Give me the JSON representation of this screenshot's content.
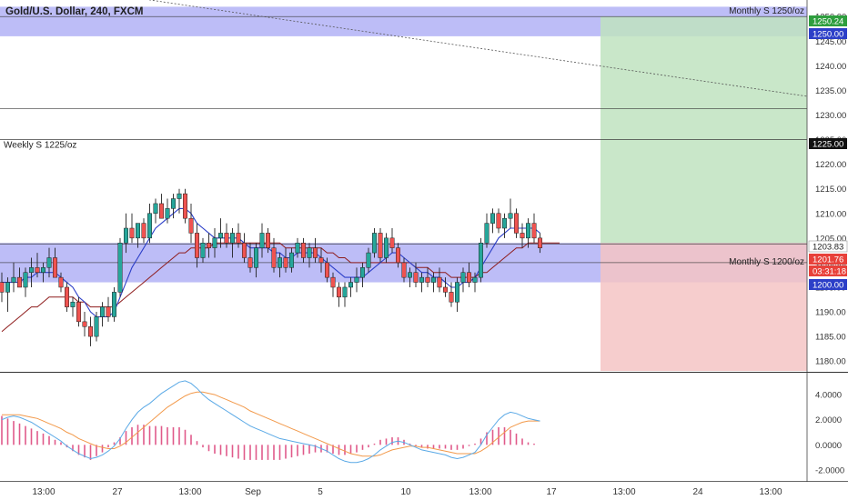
{
  "title": "Gold/U.S. Dollar, 240, FXCM",
  "colors": {
    "up": "#26a69a",
    "down": "#ef5350",
    "zone": "#7b7bf0",
    "green_zone": "#bfe3c0",
    "red_zone": "#f5c4c4",
    "ma_fast": "#2c3fc8",
    "ma_slow": "#8e1b1b",
    "macd_line": "#5aa9e6",
    "signal_line": "#f2994a",
    "hist": "#e05a8a"
  },
  "levels": [
    {
      "label": "Monthly S 1250/oz",
      "value": 1250.0
    },
    {
      "label": "Weekly S 1225/oz",
      "value": 1225.0
    },
    {
      "label": "Monthly S 1200/oz",
      "value": 1200.0
    }
  ],
  "price_badges": [
    {
      "text": "1250.24",
      "kind": "green"
    },
    {
      "text": "1250.00",
      "kind": "blue"
    },
    {
      "text": "1225.00",
      "kind": "black"
    },
    {
      "text": "1203.83",
      "kind": "plain"
    },
    {
      "text": "1201.76",
      "kind": "red"
    },
    {
      "text": "03:31:18",
      "kind": "red"
    },
    {
      "text": "1200.00",
      "kind": "blue"
    }
  ],
  "chart_data": [
    {
      "type": "candlestick",
      "title": "Gold/U.S. Dollar, 240, FXCM",
      "ylim": [
        1178,
        1253
      ],
      "y_ticks": [
        1180,
        1185,
        1190,
        1195,
        1200,
        1205,
        1210,
        1215,
        1220,
        1225,
        1230,
        1235,
        1240,
        1245,
        1250
      ],
      "y_tick_labels": [
        "1180.00",
        "1185.00",
        "1190.00",
        "1195.00",
        "1200.00",
        "1205.00",
        "1210.00",
        "1215.00",
        "1220.00",
        "1225.00",
        "1230.00",
        "1235.00",
        "1240.00",
        "1245.00",
        "1250.00"
      ],
      "x_tick_labels": [
        "13:00",
        "27",
        "13:00",
        "Sep",
        "5",
        "10",
        "13:00",
        "17",
        "13:00",
        "24",
        "13:00"
      ],
      "horizontal_lines": [
        1250.0,
        1231.3,
        1225.0,
        1203.8,
        1200.0
      ],
      "zones": [
        {
          "name": "Monthly S 1250/oz",
          "from": 1246,
          "to": 1252
        },
        {
          "name": "Monthly S 1200/oz",
          "from": 1196,
          "to": 1204
        }
      ],
      "position": {
        "entry": 1204,
        "target": 1250,
        "stop": 1178
      },
      "candles": [
        [
          1196,
          1198,
          1192,
          1194
        ],
        [
          1194,
          1197,
          1190,
          1196
        ],
        [
          1196,
          1200,
          1194,
          1197
        ],
        [
          1197,
          1199,
          1195,
          1195
        ],
        [
          1195,
          1199,
          1193,
          1198
        ],
        [
          1198,
          1201,
          1195,
          1199
        ],
        [
          1199,
          1202,
          1197,
          1198
        ],
        [
          1198,
          1200,
          1196,
          1199
        ],
        [
          1199,
          1203,
          1197,
          1201
        ],
        [
          1201,
          1203,
          1197,
          1197
        ],
        [
          1197,
          1198,
          1194,
          1195
        ],
        [
          1195,
          1196,
          1190,
          1191
        ],
        [
          1191,
          1193,
          1189,
          1192
        ],
        [
          1192,
          1193,
          1187,
          1188
        ],
        [
          1188,
          1190,
          1185,
          1187
        ],
        [
          1187,
          1189,
          1183,
          1185
        ],
        [
          1185,
          1190,
          1184,
          1189
        ],
        [
          1189,
          1192,
          1187,
          1191
        ],
        [
          1191,
          1193,
          1188,
          1189
        ],
        [
          1189,
          1195,
          1188,
          1194
        ],
        [
          1194,
          1205,
          1193,
          1204
        ],
        [
          1204,
          1210,
          1202,
          1207
        ],
        [
          1207,
          1210,
          1204,
          1205
        ],
        [
          1205,
          1208,
          1203,
          1208
        ],
        [
          1208,
          1209,
          1204,
          1205
        ],
        [
          1205,
          1212,
          1204,
          1210
        ],
        [
          1210,
          1213,
          1208,
          1212
        ],
        [
          1212,
          1214,
          1209,
          1209
        ],
        [
          1209,
          1213,
          1208,
          1211
        ],
        [
          1211,
          1214,
          1209,
          1213
        ],
        [
          1213,
          1215,
          1210,
          1214
        ],
        [
          1214,
          1215,
          1208,
          1209
        ],
        [
          1209,
          1212,
          1204,
          1206
        ],
        [
          1206,
          1208,
          1199,
          1201
        ],
        [
          1201,
          1205,
          1200,
          1204
        ],
        [
          1204,
          1206,
          1201,
          1203
        ],
        [
          1203,
          1207,
          1201,
          1205
        ],
        [
          1205,
          1209,
          1203,
          1206
        ],
        [
          1206,
          1208,
          1203,
          1204
        ],
        [
          1204,
          1207,
          1201,
          1206
        ],
        [
          1206,
          1208,
          1203,
          1204
        ],
        [
          1204,
          1206,
          1200,
          1201
        ],
        [
          1201,
          1204,
          1198,
          1199
        ],
        [
          1199,
          1204,
          1197,
          1203
        ],
        [
          1203,
          1208,
          1201,
          1206
        ],
        [
          1206,
          1207,
          1202,
          1203
        ],
        [
          1203,
          1205,
          1198,
          1199
        ],
        [
          1199,
          1202,
          1197,
          1201
        ],
        [
          1201,
          1203,
          1198,
          1199
        ],
        [
          1199,
          1203,
          1198,
          1202
        ],
        [
          1202,
          1205,
          1201,
          1204
        ],
        [
          1204,
          1205,
          1200,
          1201
        ],
        [
          1201,
          1204,
          1199,
          1203
        ],
        [
          1203,
          1205,
          1200,
          1201
        ],
        [
          1201,
          1203,
          1198,
          1200
        ],
        [
          1200,
          1201,
          1196,
          1197
        ],
        [
          1197,
          1198,
          1193,
          1195
        ],
        [
          1195,
          1196,
          1191,
          1193
        ],
        [
          1193,
          1196,
          1191,
          1195
        ],
        [
          1195,
          1197,
          1193,
          1196
        ],
        [
          1196,
          1199,
          1194,
          1197
        ],
        [
          1197,
          1200,
          1195,
          1199
        ],
        [
          1199,
          1203,
          1198,
          1202
        ],
        [
          1202,
          1207,
          1201,
          1206
        ],
        [
          1206,
          1207,
          1200,
          1201
        ],
        [
          1201,
          1206,
          1200,
          1205
        ],
        [
          1205,
          1207,
          1202,
          1203
        ],
        [
          1203,
          1204,
          1199,
          1200
        ],
        [
          1200,
          1201,
          1196,
          1197
        ],
        [
          1197,
          1199,
          1195,
          1198
        ],
        [
          1198,
          1200,
          1195,
          1196
        ],
        [
          1196,
          1198,
          1194,
          1197
        ],
        [
          1197,
          1199,
          1195,
          1196
        ],
        [
          1196,
          1198,
          1194,
          1197
        ],
        [
          1197,
          1199,
          1194,
          1195
        ],
        [
          1195,
          1197,
          1193,
          1194
        ],
        [
          1194,
          1196,
          1191,
          1192
        ],
        [
          1192,
          1197,
          1190,
          1196
        ],
        [
          1196,
          1199,
          1194,
          1198
        ],
        [
          1198,
          1200,
          1195,
          1196
        ],
        [
          1196,
          1198,
          1194,
          1197
        ],
        [
          1197,
          1205,
          1196,
          1204
        ],
        [
          1204,
          1210,
          1203,
          1208
        ],
        [
          1208,
          1211,
          1206,
          1210
        ],
        [
          1210,
          1211,
          1206,
          1207
        ],
        [
          1207,
          1210,
          1205,
          1209
        ],
        [
          1209,
          1213,
          1207,
          1210
        ],
        [
          1210,
          1211,
          1205,
          1206
        ],
        [
          1206,
          1208,
          1203,
          1205
        ],
        [
          1205,
          1209,
          1203,
          1208
        ],
        [
          1208,
          1210,
          1204,
          1205
        ],
        [
          1205,
          1206,
          1202,
          1203
        ]
      ],
      "ma_fast": [
        1196,
        1196,
        1196,
        1196,
        1197,
        1197,
        1198,
        1198,
        1198,
        1198,
        1197,
        1196,
        1195,
        1193,
        1192,
        1190,
        1189,
        1189,
        1189,
        1190,
        1193,
        1196,
        1199,
        1201,
        1203,
        1205,
        1207,
        1208,
        1209,
        1210,
        1211,
        1211,
        1210,
        1208,
        1207,
        1206,
        1205,
        1205,
        1205,
        1205,
        1205,
        1204,
        1203,
        1203,
        1203,
        1203,
        1202,
        1202,
        1201,
        1201,
        1202,
        1202,
        1202,
        1202,
        1201,
        1200,
        1199,
        1198,
        1197,
        1197,
        1197,
        1197,
        1198,
        1199,
        1200,
        1201,
        1202,
        1202,
        1201,
        1200,
        1199,
        1198,
        1198,
        1197,
        1197,
        1196,
        1195,
        1195,
        1196,
        1196,
        1197,
        1199,
        1201,
        1203,
        1205,
        1206,
        1207,
        1207,
        1207,
        1207,
        1207,
        1206
      ],
      "ma_slow": [
        1186,
        1187,
        1188,
        1189,
        1190,
        1191,
        1191,
        1192,
        1193,
        1193,
        1193,
        1193,
        1193,
        1192,
        1192,
        1191,
        1191,
        1191,
        1191,
        1191,
        1192,
        1193,
        1194,
        1195,
        1196,
        1197,
        1198,
        1199,
        1200,
        1201,
        1202,
        1202,
        1203,
        1203,
        1203,
        1203,
        1204,
        1204,
        1204,
        1204,
        1204,
        1204,
        1204,
        1204,
        1204,
        1204,
        1204,
        1204,
        1203,
        1203,
        1203,
        1203,
        1203,
        1203,
        1203,
        1202,
        1202,
        1201,
        1201,
        1200,
        1200,
        1200,
        1200,
        1200,
        1200,
        1200,
        1200,
        1200,
        1200,
        1200,
        1199,
        1199,
        1199,
        1198,
        1198,
        1198,
        1197,
        1197,
        1197,
        1197,
        1197,
        1198,
        1198,
        1199,
        1200,
        1201,
        1202,
        1203,
        1203,
        1204,
        1204,
        1204
      ]
    },
    {
      "type": "macd",
      "ylim": [
        -2.8,
        5.6
      ],
      "y_ticks": [
        -2,
        0,
        2,
        4
      ],
      "y_tick_labels": [
        "-2.0000",
        "0.0000",
        "2.0000",
        "4.0000"
      ],
      "macd": [
        2.0,
        2.2,
        2.3,
        2.2,
        2.0,
        1.8,
        1.5,
        1.2,
        0.9,
        0.6,
        0.3,
        -0.1,
        -0.4,
        -0.7,
        -0.9,
        -1.1,
        -1.0,
        -0.8,
        -0.5,
        -0.1,
        0.5,
        1.3,
        2.0,
        2.6,
        3.0,
        3.3,
        3.7,
        4.1,
        4.4,
        4.7,
        5.0,
        5.1,
        4.9,
        4.5,
        4.0,
        3.6,
        3.3,
        3.0,
        2.7,
        2.4,
        2.1,
        1.8,
        1.5,
        1.3,
        1.1,
        0.9,
        0.7,
        0.5,
        0.4,
        0.3,
        0.2,
        0.1,
        0.0,
        -0.1,
        -0.3,
        -0.5,
        -0.8,
        -1.1,
        -1.3,
        -1.4,
        -1.4,
        -1.3,
        -1.1,
        -0.8,
        -0.4,
        -0.1,
        0.2,
        0.3,
        0.2,
        0.0,
        -0.2,
        -0.4,
        -0.5,
        -0.6,
        -0.7,
        -0.8,
        -1.0,
        -1.1,
        -1.0,
        -0.8,
        -0.6,
        0.0,
        0.8,
        1.4,
        2.0,
        2.4,
        2.6,
        2.5,
        2.3,
        2.1,
        2.0,
        1.9
      ],
      "signal": [
        2.4,
        2.4,
        2.4,
        2.4,
        2.3,
        2.2,
        2.1,
        1.9,
        1.7,
        1.5,
        1.3,
        1.0,
        0.8,
        0.5,
        0.3,
        0.1,
        -0.1,
        -0.2,
        -0.3,
        -0.3,
        -0.1,
        0.2,
        0.6,
        1.0,
        1.4,
        1.8,
        2.2,
        2.6,
        3.0,
        3.3,
        3.6,
        3.9,
        4.1,
        4.2,
        4.2,
        4.1,
        4.0,
        3.8,
        3.6,
        3.4,
        3.2,
        3.0,
        2.7,
        2.5,
        2.3,
        2.1,
        1.9,
        1.7,
        1.5,
        1.3,
        1.1,
        0.9,
        0.7,
        0.5,
        0.3,
        0.1,
        -0.1,
        -0.3,
        -0.5,
        -0.7,
        -0.8,
        -0.9,
        -0.9,
        -0.9,
        -0.8,
        -0.6,
        -0.4,
        -0.3,
        -0.2,
        -0.1,
        -0.1,
        -0.2,
        -0.2,
        -0.3,
        -0.4,
        -0.5,
        -0.6,
        -0.7,
        -0.7,
        -0.7,
        -0.7,
        -0.5,
        -0.2,
        0.2,
        0.6,
        1.0,
        1.4,
        1.6,
        1.8,
        1.9,
        1.9,
        1.9
      ],
      "histogram": [
        2.3,
        2.1,
        1.9,
        1.7,
        1.5,
        1.3,
        1.1,
        0.9,
        0.7,
        0.4,
        0.2,
        -0.2,
        -0.5,
        -0.8,
        -1.0,
        -1.2,
        -0.9,
        -0.6,
        -0.2,
        0.2,
        0.6,
        1.1,
        1.4,
        1.6,
        1.6,
        1.5,
        1.5,
        1.5,
        1.4,
        1.4,
        1.4,
        1.2,
        0.8,
        0.3,
        -0.2,
        -0.5,
        -0.7,
        -0.8,
        -0.9,
        -1.0,
        -1.1,
        -1.2,
        -1.2,
        -1.2,
        -1.2,
        -1.2,
        -1.2,
        -1.2,
        -1.1,
        -1.0,
        -0.9,
        -0.8,
        -0.7,
        -0.6,
        -0.6,
        -0.6,
        -0.7,
        -0.8,
        -0.8,
        -0.7,
        -0.6,
        -0.4,
        -0.2,
        0.1,
        0.4,
        0.5,
        0.6,
        0.6,
        0.4,
        0.1,
        -0.1,
        -0.2,
        -0.3,
        -0.3,
        -0.3,
        -0.3,
        -0.4,
        -0.4,
        -0.3,
        -0.1,
        0.1,
        0.5,
        1.0,
        1.2,
        1.4,
        1.4,
        1.2,
        0.9,
        0.5,
        0.2,
        0.1,
        0.0
      ]
    }
  ]
}
